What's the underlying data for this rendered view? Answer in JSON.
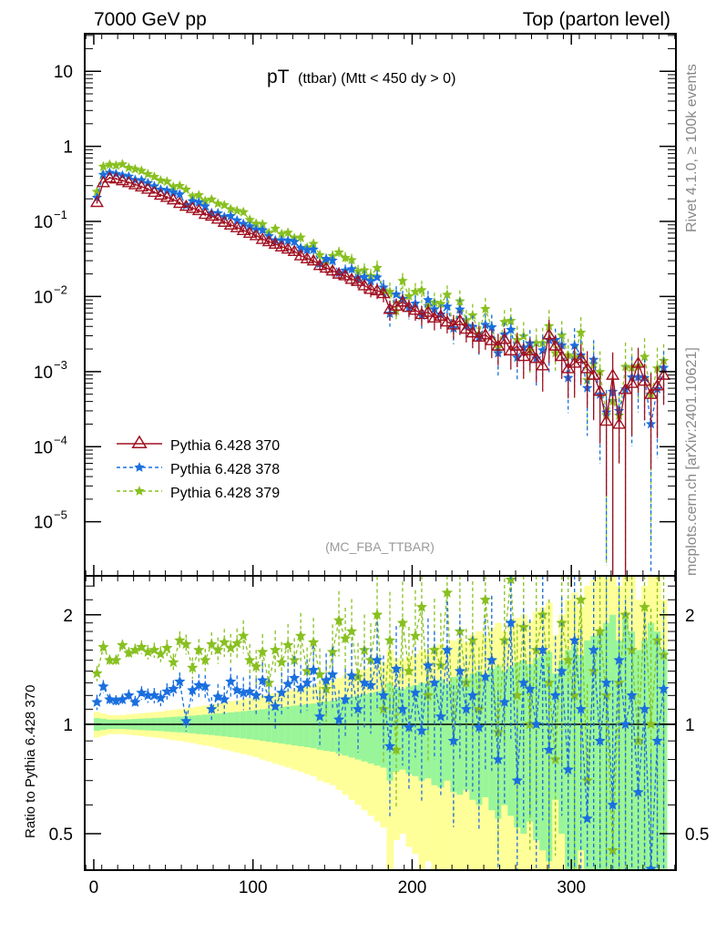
{
  "chart_data": {
    "type": "line",
    "header_left": "7000 GeV pp",
    "header_right": "Top (parton level)",
    "title_main": "pT",
    "title_sub": "(ttbar) (Mtt < 450 dy > 0)",
    "watermark": "(MC_FBA_TTBAR)",
    "side_text_top": "Rivet 4.1.0, ≥ 100k events",
    "side_text_bottom": "mcplots.cern.ch [arXiv:2401.10621]",
    "ratio_ylabel": "Ratio to Pythia 6.428 370",
    "x_range": [
      -5.7,
      365.7
    ],
    "main_y_range_log10": [
      -5.72,
      1.5
    ],
    "ratio_y_range": [
      0.397,
      2.56
    ],
    "x_ticks": [
      "0",
      "100",
      "200",
      "300"
    ],
    "x_tick_values": [
      0,
      100,
      200,
      300
    ],
    "main_y_ticks": [
      {
        "base": "10",
        "exp": "",
        "value": 10
      },
      {
        "base": "1",
        "exp": "",
        "value": 1
      },
      {
        "base": "10",
        "exp": "−1",
        "value": 0.1
      },
      {
        "base": "10",
        "exp": "−2",
        "value": 0.01
      },
      {
        "base": "10",
        "exp": "−3",
        "value": 0.001
      },
      {
        "base": "10",
        "exp": "−4",
        "value": 0.0001
      },
      {
        "base": "10",
        "exp": "−5",
        "value": 1e-05
      }
    ],
    "ratio_y_ticks": [
      "2",
      "1",
      "0.5"
    ],
    "ratio_y_tick_values": [
      2,
      1,
      0.5
    ],
    "bin_width": 4,
    "x_first_center": 2,
    "legend": [
      {
        "label": "Pythia 6.428 370",
        "color": "#a01020",
        "marker": "open-triangle",
        "line": "solid"
      },
      {
        "label": "Pythia 6.428 378",
        "color": "#1a6fdf",
        "marker": "star",
        "line": "dashed"
      },
      {
        "label": "Pythia 6.428 379",
        "color": "#88c020",
        "marker": "star",
        "line": "dashed"
      }
    ],
    "band_colors": {
      "inner": "#99f599",
      "outer": "#ffff99"
    },
    "reference_values": [
      0.18,
      0.33,
      0.38,
      0.37,
      0.35,
      0.33,
      0.31,
      0.29,
      0.27,
      0.245,
      0.225,
      0.21,
      0.195,
      0.175,
      0.16,
      0.15,
      0.14,
      0.125,
      0.118,
      0.108,
      0.098,
      0.09,
      0.083,
      0.076,
      0.07,
      0.065,
      0.058,
      0.054,
      0.05,
      0.046,
      0.043,
      0.04,
      0.035,
      0.032,
      0.03,
      0.026,
      0.024,
      0.022,
      0.02,
      0.019,
      0.017,
      0.016,
      0.014,
      0.0125,
      0.012,
      0.011,
      0.0068,
      0.0075,
      0.0085,
      0.0072,
      0.0066,
      0.0058,
      0.0062,
      0.0052,
      0.0055,
      0.0046,
      0.0042,
      0.0048,
      0.0037,
      0.0033,
      0.0029,
      0.0031,
      0.0026,
      0.0022,
      0.0027,
      0.0019,
      0.0022,
      0.0016,
      0.0019,
      0.0015,
      0.0012,
      0.0031,
      0.0022,
      0.0016,
      0.0011,
      0.0013,
      0.0015,
      0.0011,
      0.0009,
      0.00055,
      0.00022,
      0.0009,
      0.0002,
      0.00058,
      0.0007,
      0.0013,
      0.00075,
      0.0005,
      0.00065,
      0.0009
    ],
    "reference_rel_errors": [
      0.04,
      0.035,
      0.03,
      0.03,
      0.03,
      0.032,
      0.034,
      0.036,
      0.038,
      0.04,
      0.042,
      0.045,
      0.048,
      0.05,
      0.053,
      0.056,
      0.06,
      0.063,
      0.066,
      0.07,
      0.074,
      0.078,
      0.082,
      0.086,
      0.09,
      0.094,
      0.1,
      0.105,
      0.11,
      0.115,
      0.12,
      0.125,
      0.13,
      0.135,
      0.14,
      0.15,
      0.155,
      0.16,
      0.17,
      0.18,
      0.19,
      0.2,
      0.21,
      0.22,
      0.23,
      0.24,
      0.3,
      0.26,
      0.25,
      0.27,
      0.28,
      0.3,
      0.29,
      0.32,
      0.33,
      0.3,
      0.35,
      0.36,
      0.34,
      0.38,
      0.4,
      0.37,
      0.42,
      0.45,
      0.4,
      0.44,
      0.48,
      0.5,
      0.46,
      0.52,
      0.55,
      0.58,
      0.38,
      0.5,
      0.6,
      0.65,
      0.55,
      0.7,
      0.75,
      0.8,
      0.9,
      1.0,
      0.7,
      1.0,
      0.8,
      0.6,
      0.7,
      0.9,
      0.8,
      0.6
    ],
    "ratios": [
      {
        "name": "Pythia 6.428 378",
        "values": [
          1.15,
          1.27,
          1.17,
          1.16,
          1.17,
          1.2,
          1.15,
          1.22,
          1.2,
          1.2,
          1.18,
          1.23,
          1.25,
          1.31,
          1.02,
          1.24,
          1.28,
          1.27,
          1.1,
          1.19,
          1.17,
          1.31,
          1.24,
          1.22,
          1.23,
          1.2,
          1.32,
          1.18,
          1.12,
          1.22,
          1.29,
          1.34,
          1.26,
          1.3,
          1.41,
          1.05,
          1.32,
          1.37,
          1.03,
          1.17,
          1.36,
          1.1,
          1.3,
          1.28,
          1.5,
          1.2,
          0.87,
          1.42,
          1.1,
          0.98,
          1.22,
          0.96,
          1.45,
          1.3,
          1.05,
          1.6,
          0.9,
          1.4,
          1.1,
          1.2,
          0.98,
          1.35,
          1.5,
          0.8,
          1.15,
          1.9,
          0.7,
          1.3,
          1.25,
          1.0,
          1.6,
          0.85,
          1.2,
          1.4,
          0.75,
          1.7,
          1.1,
          0.55,
          1.6,
          0.9,
          1.3,
          0.6,
          1.5,
          1.0,
          1.2,
          0.65,
          1.1,
          0.4,
          0.9,
          1.25
        ]
      },
      {
        "name": "Pythia 6.428 379",
        "values": [
          1.38,
          1.63,
          1.5,
          1.5,
          1.65,
          1.57,
          1.6,
          1.63,
          1.58,
          1.6,
          1.56,
          1.62,
          1.48,
          1.7,
          1.66,
          1.43,
          1.6,
          1.5,
          1.66,
          1.6,
          1.68,
          1.62,
          1.67,
          1.75,
          1.5,
          1.44,
          1.58,
          1.3,
          1.6,
          1.48,
          1.65,
          1.5,
          1.75,
          1.4,
          1.68,
          1.37,
          1.25,
          1.58,
          1.93,
          1.72,
          1.8,
          1.35,
          1.6,
          1.5,
          2.0,
          1.1,
          1.7,
          0.85,
          1.9,
          1.4,
          1.75,
          2.1,
          1.2,
          1.6,
          1.45,
          2.3,
          0.9,
          1.8,
          1.3,
          1.7,
          1.1,
          2.2,
          1.5,
          0.95,
          1.7,
          2.5,
          1.2,
          1.85,
          1.0,
          1.6,
          2.0,
          1.3,
          0.8,
          1.9,
          1.5,
          1.2,
          2.2,
          0.7,
          1.4,
          1.8,
          1.2,
          0.45,
          1.3,
          2.0,
          1.6,
          0.9,
          2.1,
          1.0,
          1.7,
          1.55
        ]
      }
    ]
  }
}
